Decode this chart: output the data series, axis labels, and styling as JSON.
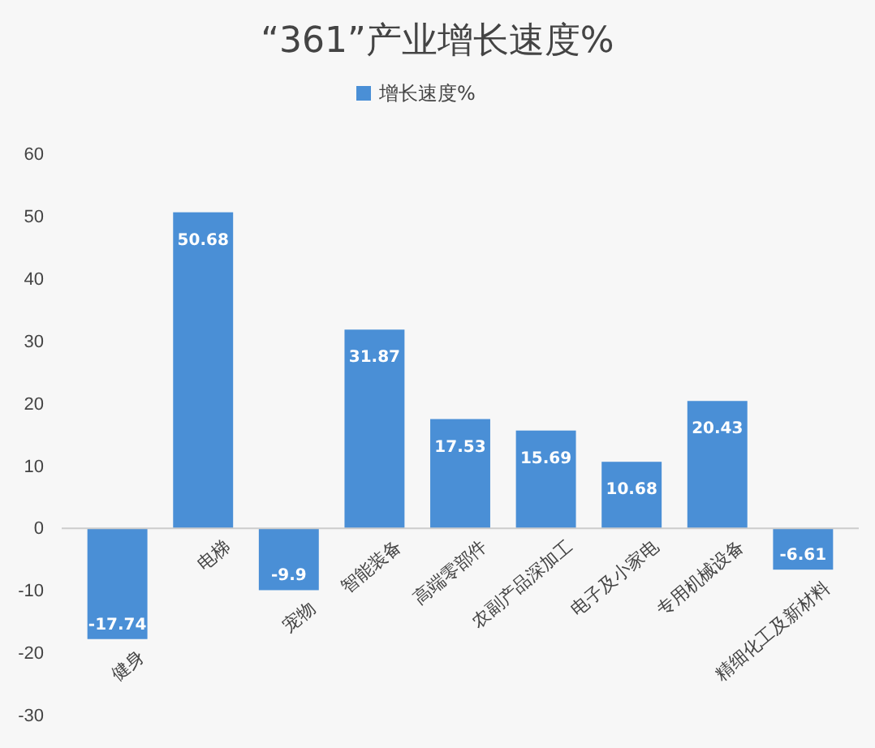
{
  "chart_data": {
    "type": "bar",
    "title": "“361”产业增长速度%",
    "categories": [
      "健身",
      "电梯",
      "宠物",
      "智能装备",
      "高端零部件",
      "农副产品深加工",
      "电子及小家电",
      "专用机械设备",
      "精细化工及新材料"
    ],
    "series": [
      {
        "name": "增长速度%",
        "color": "#4a8fd6",
        "values": [
          -17.74,
          50.68,
          -9.9,
          31.87,
          17.53,
          15.69,
          10.68,
          20.43,
          -6.61
        ]
      }
    ],
    "ylim": [
      -30,
      60
    ],
    "yticks": [
      -30,
      -20,
      -10,
      0,
      10,
      20,
      30,
      40,
      50,
      60
    ],
    "grid": false,
    "legend": "top",
    "data_labels": true
  }
}
